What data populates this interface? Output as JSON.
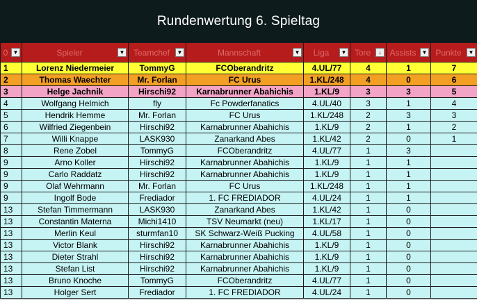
{
  "title": "Rundenwertung 6. Spieltag",
  "colors": {
    "title_bg": "#0e1b1d",
    "header_bg": "#b71c1c",
    "header_text": "#e06a6a",
    "row_bg": "#c6f3f3",
    "rank1": "#ffff33",
    "rank2": "#f29f24",
    "rank3": "#f3a3c6"
  },
  "columns": [
    "0",
    "Spieler",
    "Teamchef",
    "Mannschaft",
    "Liga",
    "Tore",
    "Assists",
    "Punkte"
  ],
  "sort_indicator": "↓",
  "dropdown_icon": "chevron-down-icon",
  "rows": [
    [
      "1",
      "Lorenz Niedermeier",
      "TommyG",
      "FCOberandritz",
      "4.UL/77",
      "4",
      "1",
      "7"
    ],
    [
      "2",
      "Thomas Waechter",
      "Mr. Forlan",
      "FC Urus",
      "1.KL/248",
      "4",
      "0",
      "6"
    ],
    [
      "3",
      "Helge Jachnik",
      "Hirschi92",
      "Karnabrunner Abahichis",
      "1.KL/9",
      "3",
      "3",
      "5"
    ],
    [
      "4",
      "Wolfgang Helmich",
      "fly",
      "Fc Powderfanatics",
      "4.UL/40",
      "3",
      "1",
      "4"
    ],
    [
      "5",
      "Hendrik Hemme",
      "Mr. Forlan",
      "FC Urus",
      "1.KL/248",
      "2",
      "3",
      "3"
    ],
    [
      "6",
      "Wilfried Ziegenbein",
      "Hirschi92",
      "Karnabrunner Abahichis",
      "1.KL/9",
      "2",
      "1",
      "2"
    ],
    [
      "7",
      "Willi Knappe",
      "LASK930",
      "Zanarkand Abes",
      "1.KL/42",
      "2",
      "0",
      "1"
    ],
    [
      "8",
      "Rene Zobel",
      "TommyG",
      "FCOberandritz",
      "4.UL/77",
      "1",
      "3",
      ""
    ],
    [
      "9",
      "Arno Koller",
      "Hirschi92",
      "Karnabrunner Abahichis",
      "1.KL/9",
      "1",
      "1",
      ""
    ],
    [
      "9",
      "Carlo Raddatz",
      "Hirschi92",
      "Karnabrunner Abahichis",
      "1.KL/9",
      "1",
      "1",
      ""
    ],
    [
      "9",
      "Olaf Wehrmann",
      "Mr. Forlan",
      "FC Urus",
      "1.KL/248",
      "1",
      "1",
      ""
    ],
    [
      "9",
      "Ingolf Bode",
      "Frediador",
      "1. FC FREDIADOR",
      "4.UL/24",
      "1",
      "1",
      ""
    ],
    [
      "13",
      "Stefan Timmermann",
      "LASK930",
      "Zanarkand Abes",
      "1.KL/42",
      "1",
      "0",
      ""
    ],
    [
      "13",
      "Constantin Materna",
      "Michi1410",
      "TSV Neumarkt (neu)",
      "1.KL/17",
      "1",
      "0",
      ""
    ],
    [
      "13",
      "Merlin Keul",
      "sturmfan10",
      "SK Schwarz-Weiß Pucking",
      "4.UL/58",
      "1",
      "0",
      ""
    ],
    [
      "13",
      "Victor Blank",
      "Hirschi92",
      "Karnabrunner Abahichis",
      "1.KL/9",
      "1",
      "0",
      ""
    ],
    [
      "13",
      "Dieter Strahl",
      "Hirschi92",
      "Karnabrunner Abahichis",
      "1.KL/9",
      "1",
      "0",
      ""
    ],
    [
      "13",
      "Stefan List",
      "Hirschi92",
      "Karnabrunner Abahichis",
      "1.KL/9",
      "1",
      "0",
      ""
    ],
    [
      "13",
      "Bruno Knoche",
      "TommyG",
      "FCOberandritz",
      "4.UL/77",
      "1",
      "0",
      ""
    ],
    [
      "13",
      "Holger Sert",
      "Frediador",
      "1. FC FREDIADOR",
      "4.UL/24",
      "1",
      "0",
      ""
    ]
  ]
}
